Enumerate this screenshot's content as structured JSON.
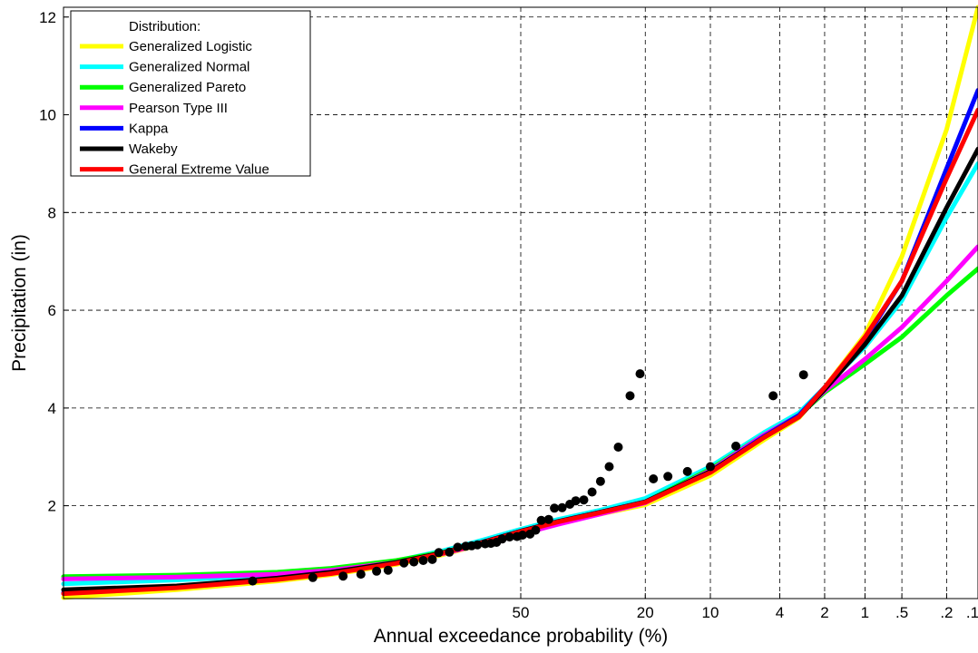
{
  "chart_data": {
    "type": "line",
    "xlabel": "Annual exceedance probability (%)",
    "ylabel": "Precipitation (in)",
    "ylim": [
      0.1,
      12.2
    ],
    "x_scale": "normal-probability (descending)",
    "grid": true,
    "x_ticks": [
      {
        "value": 50,
        "label": "50"
      },
      {
        "value": 20,
        "label": "20"
      },
      {
        "value": 10,
        "label": "10"
      },
      {
        "value": 4,
        "label": "4"
      },
      {
        "value": 2,
        "label": "2"
      },
      {
        "value": 1,
        "label": "1"
      },
      {
        "value": 0.5,
        "label": ".5"
      },
      {
        "value": 0.2,
        "label": ".2"
      },
      {
        "value": 0.1,
        "label": ".1"
      }
    ],
    "y_ticks": [
      {
        "value": 2,
        "label": "2"
      },
      {
        "value": 4,
        "label": "4"
      },
      {
        "value": 6,
        "label": "6"
      },
      {
        "value": 8,
        "label": "8"
      },
      {
        "value": 10,
        "label": "10"
      },
      {
        "value": 12,
        "label": "12"
      }
    ],
    "legend": {
      "title": "Distribution:",
      "position": "top-left"
    },
    "series": [
      {
        "name": "Generalized Logistic",
        "color": "#ffff00",
        "x": [
          99.9,
          99,
          95,
          90,
          80,
          70,
          60,
          50,
          40,
          30,
          20,
          10,
          5,
          3,
          2,
          1,
          0.5,
          0.2,
          0.1
        ],
        "y": [
          0.12,
          0.28,
          0.46,
          0.59,
          0.8,
          1.0,
          1.22,
          1.46,
          1.66,
          1.82,
          2.02,
          2.62,
          3.35,
          3.8,
          4.42,
          5.5,
          7.1,
          9.7,
          12.2
        ]
      },
      {
        "name": "Generalized Normal",
        "color": "#00ffff",
        "x": [
          99.9,
          99,
          95,
          90,
          80,
          70,
          60,
          50,
          40,
          30,
          20,
          10,
          5,
          3,
          2,
          1,
          0.5,
          0.2,
          0.1
        ],
        "y": [
          0.4,
          0.48,
          0.58,
          0.68,
          0.87,
          1.08,
          1.3,
          1.52,
          1.72,
          1.9,
          2.15,
          2.8,
          3.5,
          3.9,
          4.42,
          5.25,
          6.2,
          7.9,
          9.0
        ]
      },
      {
        "name": "Generalized Pareto",
        "color": "#00ff00",
        "x": [
          99.9,
          99,
          95,
          90,
          80,
          70,
          60,
          50,
          40,
          30,
          20,
          10,
          5,
          3,
          2,
          1,
          0.5,
          0.2,
          0.1
        ],
        "y": [
          0.55,
          0.58,
          0.64,
          0.72,
          0.88,
          1.05,
          1.25,
          1.45,
          1.65,
          1.84,
          2.08,
          2.75,
          3.45,
          3.85,
          4.32,
          4.9,
          5.45,
          6.3,
          6.85
        ]
      },
      {
        "name": "Pearson Type III",
        "color": "#ff00ff",
        "x": [
          99.9,
          99,
          95,
          90,
          80,
          70,
          60,
          50,
          40,
          30,
          20,
          10,
          5,
          3,
          2,
          1,
          0.5,
          0.2,
          0.1
        ],
        "y": [
          0.5,
          0.54,
          0.6,
          0.68,
          0.84,
          1.02,
          1.22,
          1.42,
          1.62,
          1.82,
          2.06,
          2.72,
          3.45,
          3.85,
          4.35,
          5.0,
          5.65,
          6.6,
          7.3
        ]
      },
      {
        "name": "Kappa",
        "color": "#0000ff",
        "x": [
          99.9,
          99,
          95,
          90,
          80,
          70,
          60,
          50,
          40,
          30,
          20,
          10,
          5,
          3,
          2,
          1,
          0.5,
          0.2,
          0.1
        ],
        "y": [
          0.22,
          0.33,
          0.5,
          0.62,
          0.83,
          1.04,
          1.26,
          1.48,
          1.68,
          1.86,
          2.08,
          2.7,
          3.42,
          3.85,
          4.42,
          5.4,
          6.6,
          8.9,
          10.5
        ]
      },
      {
        "name": "Wakeby",
        "color": "#000000",
        "x": [
          99.9,
          99,
          95,
          90,
          80,
          70,
          60,
          50,
          40,
          30,
          20,
          10,
          5,
          3,
          2,
          1,
          0.5,
          0.2,
          0.1
        ],
        "y": [
          0.28,
          0.36,
          0.52,
          0.64,
          0.84,
          1.04,
          1.26,
          1.48,
          1.68,
          1.86,
          2.08,
          2.7,
          3.4,
          3.82,
          4.38,
          5.3,
          6.3,
          8.1,
          9.3
        ]
      },
      {
        "name": "General Extreme Value",
        "color": "#ff0000",
        "x": [
          99.9,
          99,
          95,
          90,
          80,
          70,
          60,
          50,
          40,
          30,
          20,
          10,
          5,
          3,
          2,
          1,
          0.5,
          0.2,
          0.1
        ],
        "y": [
          0.2,
          0.32,
          0.49,
          0.61,
          0.82,
          1.03,
          1.25,
          1.47,
          1.67,
          1.85,
          2.07,
          2.68,
          3.4,
          3.82,
          4.42,
          5.45,
          6.6,
          8.7,
          10.1
        ]
      }
    ],
    "observations": {
      "x": [
        96.5,
        92.0,
        88.5,
        86.0,
        83.5,
        81.5,
        78.5,
        76.5,
        74.5,
        72.5,
        71.0,
        68.5,
        66.5,
        64.5,
        63.0,
        61.5,
        59.5,
        58.0,
        56.5,
        55.0,
        53.0,
        51.0,
        49.5,
        47.5,
        46.0,
        44.5,
        42.5,
        41.0,
        39.0,
        37.0,
        35.5,
        33.5,
        31.5,
        29.5,
        27.5,
        25.5,
        23.0,
        21.0,
        18.5,
        16.0,
        13.0,
        10.0,
        7.3,
        4.4,
        2.8
      ],
      "y": [
        0.46,
        0.53,
        0.56,
        0.6,
        0.66,
        0.68,
        0.83,
        0.85,
        0.88,
        0.9,
        1.04,
        1.05,
        1.15,
        1.17,
        1.18,
        1.2,
        1.22,
        1.23,
        1.25,
        1.32,
        1.36,
        1.37,
        1.4,
        1.42,
        1.5,
        1.7,
        1.72,
        1.95,
        1.96,
        2.03,
        2.1,
        2.12,
        2.28,
        2.5,
        2.8,
        3.2,
        4.25,
        4.7,
        2.55,
        2.6,
        2.7,
        2.8,
        3.22,
        4.25,
        4.68
      ]
    }
  }
}
